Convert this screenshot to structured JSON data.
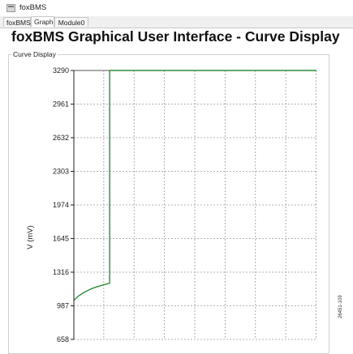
{
  "window": {
    "title": "foxBMS"
  },
  "tabs": [
    {
      "label": "foxBMS"
    },
    {
      "label": "Graph"
    },
    {
      "label": "Module0"
    }
  ],
  "page": {
    "title": "foxBMS Graphical User Interface - Curve Display",
    "group_label": "Curve Display",
    "side_code": "26451-109"
  },
  "colors": {
    "series": "#2e8b3a",
    "grid": "#9a9a9a",
    "axis": "#222222",
    "border_line": "#555555"
  },
  "chart_data": {
    "type": "line",
    "title": "",
    "xlabel": "",
    "ylabel": "V (mV)",
    "yticks": [
      3290,
      2961,
      2632,
      2303,
      1974,
      1645,
      1316,
      987,
      658
    ],
    "ylim": [
      658,
      3290
    ],
    "xlim": [
      0,
      8
    ],
    "grid": true,
    "series": [
      {
        "values": [
          {
            "x": 0.0,
            "y": 1040
          },
          {
            "x": 0.15,
            "y": 1082
          },
          {
            "x": 0.3,
            "y": 1112
          },
          {
            "x": 0.45,
            "y": 1136
          },
          {
            "x": 0.6,
            "y": 1156
          },
          {
            "x": 0.75,
            "y": 1172
          },
          {
            "x": 0.9,
            "y": 1186
          },
          {
            "x": 1.05,
            "y": 1198
          },
          {
            "x": 1.18,
            "y": 1208
          },
          {
            "x": 1.18,
            "y": 3290
          },
          {
            "x": 8.0,
            "y": 3290
          }
        ]
      }
    ]
  }
}
